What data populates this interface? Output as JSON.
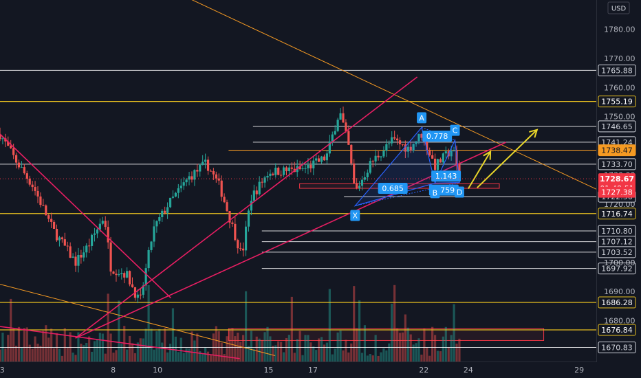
{
  "header": {
    "currency": "USD"
  },
  "chart_data": {
    "type": "candlestick",
    "ylim": [
      1666,
      1790
    ],
    "xlim": [
      2.9,
      29.8
    ],
    "y_ticks": [
      "1780.00",
      "1770.00",
      "1760.00",
      "1750.00",
      "1740.00",
      "1730.00",
      "1720.00",
      "1710.00",
      "1700.00",
      "1690.00",
      "1680.00",
      "1670.00"
    ],
    "x_ticks": [
      {
        "label": "3",
        "x": 3
      },
      {
        "label": "8",
        "x": 8
      },
      {
        "label": "10",
        "x": 10
      },
      {
        "label": "15",
        "x": 15
      },
      {
        "label": "17",
        "x": 17
      },
      {
        "label": "22",
        "x": 22
      },
      {
        "label": "24",
        "x": 24
      },
      {
        "label": "29",
        "x": 29
      }
    ],
    "horizontal_levels": [
      {
        "label": "1765.88",
        "value": 1765.88,
        "color": "#ffffff",
        "from": 2.9,
        "style": "white"
      },
      {
        "label": "1755.19",
        "value": 1755.19,
        "color": "#e8c020",
        "from": 2.9,
        "style": "yellow"
      },
      {
        "label": "1746.65",
        "value": 1746.65,
        "color": "#ffffff",
        "from": 14.3,
        "style": "white"
      },
      {
        "label": "1741.24",
        "value": 1741.24,
        "color": "#ffffff",
        "from": 14.3,
        "style": "white"
      },
      {
        "label": "1738.47",
        "value": 1738.47,
        "color": "#f59a23",
        "from": 13.2,
        "style": "orange"
      },
      {
        "label": "1733.70",
        "value": 1733.7,
        "color": "#ffffff",
        "from": 2.9,
        "style": "white"
      },
      {
        "label": "1722.56",
        "value": 1722.56,
        "color": "#ffffff",
        "from": 18.4,
        "style": "white"
      },
      {
        "label": "1716.74",
        "value": 1716.74,
        "color": "#e8c020",
        "from": 2.9,
        "style": "yellow"
      },
      {
        "label": "1710.80",
        "value": 1710.8,
        "color": "#ffffff",
        "from": 14.7,
        "style": "white"
      },
      {
        "label": "1707.12",
        "value": 1707.12,
        "color": "#ffffff",
        "from": 14.7,
        "style": "white"
      },
      {
        "label": "1703.52",
        "value": 1703.52,
        "color": "#ffffff",
        "from": 14.7,
        "style": "white"
      },
      {
        "label": "1697.92",
        "value": 1697.92,
        "color": "#ffffff",
        "from": 14.7,
        "style": "white"
      },
      {
        "label": "1686.28",
        "value": 1686.28,
        "color": "#e8c020",
        "from": 2.9,
        "style": "yellow"
      },
      {
        "label": "1676.84",
        "value": 1676.84,
        "color": "#e8c020",
        "from": 2.9,
        "style": "yellow"
      },
      {
        "label": "1670.83",
        "value": 1670.83,
        "color": "#ffffff",
        "from": 2.9,
        "style": "white"
      }
    ],
    "hidden_tick": "1700.00",
    "current_price": {
      "label": "1728.67",
      "value": 1728.67,
      "countdown": "01:48:51",
      "color": "#f23645"
    },
    "low_tag": {
      "label": "1727.38",
      "value": 1727.38,
      "color": "#f23645"
    },
    "harmonic_points": [
      {
        "label": "X",
        "x": 18.9,
        "y": 1719.4
      },
      {
        "label": "A",
        "x": 21.9,
        "y": 1746.3
      },
      {
        "label": "B",
        "x": 22.5,
        "y": 1727.2
      },
      {
        "label": "C",
        "x": 23.4,
        "y": 1742.0
      },
      {
        "label": "D",
        "x": 23.6,
        "y": 1727.4
      }
    ],
    "harmonic_ratios": [
      {
        "label": "0.778",
        "x": 22.6,
        "y": 1743.3
      },
      {
        "label": "0.685",
        "x": 20.6,
        "y": 1725.4
      },
      {
        "label": "0.759",
        "x": 22.9,
        "y": 1724.8
      },
      {
        "label": "1.143",
        "x": 23.0,
        "y": 1729.6
      }
    ],
    "trend_lines": [
      {
        "color": "#f59a23",
        "from": [
          5.4,
          1812
        ],
        "to": [
          29.8,
          1725
        ]
      },
      {
        "color": "#f59a23",
        "from": [
          2.9,
          1692.5
        ],
        "to": [
          15.3,
          1668
        ]
      },
      {
        "color": "#e91e63",
        "from": [
          2.9,
          1744
        ],
        "to": [
          10.6,
          1687.8
        ]
      },
      {
        "color": "#e91e63",
        "from": [
          2.9,
          1678
        ],
        "to": [
          13.7,
          1667
        ]
      },
      {
        "color": "#e91e63",
        "from": [
          6.3,
          1674
        ],
        "to": [
          21.7,
          1763.6
        ]
      },
      {
        "color": "#e91e63",
        "from": [
          6.3,
          1674
        ],
        "to": [
          25.7,
          1741.2
        ]
      }
    ],
    "projection_arrows": [
      {
        "color": "#e8d52a",
        "points": [
          [
            24.0,
            1725.3
          ],
          [
            25.0,
            1738.0
          ]
        ]
      },
      {
        "color": "#e8d52a",
        "points": [
          [
            24.4,
            1725.6
          ],
          [
            27.1,
            1745.5
          ]
        ]
      }
    ],
    "zones": [
      {
        "color": "#f23645",
        "x0": 16.4,
        "x1": 25.4,
        "y0": 1727.0,
        "y1": 1725.4
      },
      {
        "color": "#f23645",
        "x0": 13.2,
        "x1": 27.4,
        "y0": 1677.3,
        "y1": 1673.2
      }
    ],
    "bull_color": "#26a69a",
    "bear_color": "#ef5350"
  }
}
